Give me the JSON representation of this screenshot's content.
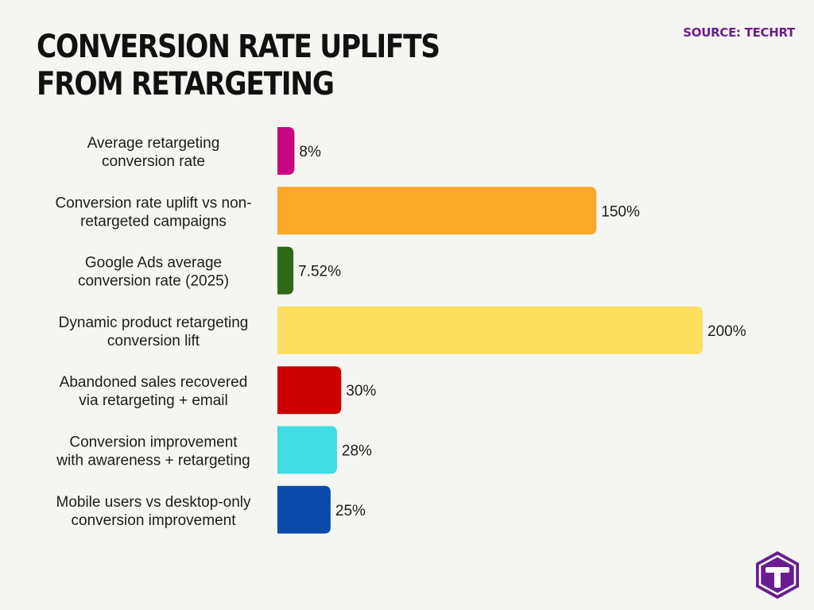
{
  "header": {
    "title": "Conversion Rate Uplifts From Retargeting",
    "source": "SOURCE: TECHRT"
  },
  "chart_data": {
    "type": "bar",
    "orientation": "horizontal",
    "title": "Conversion Rate Uplifts From Retargeting",
    "xlabel": "",
    "ylabel": "",
    "grid": false,
    "categories": [
      "Average retargeting conversion rate",
      "Conversion rate uplift vs non-retargeted campaigns",
      "Google Ads average conversion rate (2025)",
      "Dynamic product retargeting conversion lift",
      "Abandoned sales recovered via retargeting + email",
      "Conversion improvement with awareness + retargeting",
      "Mobile users vs desktop-only conversion improvement"
    ],
    "category_lines": [
      [
        "Average retargeting",
        "conversion rate"
      ],
      [
        "Conversion rate uplift vs non-",
        "retargeted campaigns"
      ],
      [
        "Google Ads average",
        "conversion rate (2025)"
      ],
      [
        "Dynamic product retargeting",
        "conversion lift"
      ],
      [
        "Abandoned sales recovered",
        "via retargeting + email"
      ],
      [
        "Conversion improvement",
        "with awareness + retargeting"
      ],
      [
        "Mobile users vs desktop-only",
        "conversion improvement"
      ]
    ],
    "values": [
      8,
      150,
      7.52,
      200,
      30,
      28,
      25
    ],
    "value_labels": [
      "8%",
      "150%",
      "7.52%",
      "200%",
      "30%",
      "28%",
      "25%"
    ],
    "colors": [
      "#c8067f",
      "#fba727",
      "#2e6a17",
      "#fddf60",
      "#cc0000",
      "#40dce2",
      "#0a4aab"
    ],
    "xlim": [
      0,
      200
    ]
  },
  "brand": {
    "logo_icon": "techrt-t-logo-icon",
    "logo_color": "#6b1d8f"
  }
}
